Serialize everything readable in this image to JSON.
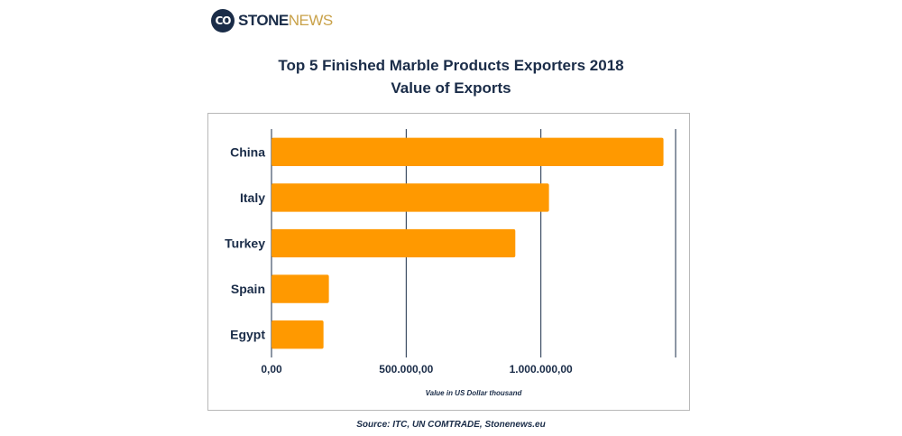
{
  "logo": {
    "icon": "stone-news-logo-icon",
    "part1": "STONE",
    "part2": "NEWS",
    "brand_color": "#1a2c48",
    "accent_color": "#c9a24a"
  },
  "title_line1": "Top 5 Finished Marble Products Exporters 2018",
  "title_line2": "Value of Exports",
  "source": "Source: ITC, UN COMTRADE, Stonenews.eu",
  "chart_data": {
    "type": "bar",
    "orientation": "horizontal",
    "title": "Top 5 Finished Marble Products Exporters 2018",
    "subtitle": "Value of Exports",
    "categories": [
      "China",
      "Italy",
      "Turkey",
      "Spain",
      "Egypt"
    ],
    "values": [
      1455000,
      1030000,
      905000,
      213000,
      193000
    ],
    "xlabel": "Value in US Dollar thousand",
    "ylabel": "",
    "xlim": [
      0,
      1500000
    ],
    "x_ticks": [
      0,
      500000,
      1000000
    ],
    "x_tick_labels": [
      "0,00",
      "500.000,00",
      "1.000.000,00"
    ],
    "grid": true,
    "bar_color": "#ff9900",
    "grid_color": "#1a2c48"
  }
}
